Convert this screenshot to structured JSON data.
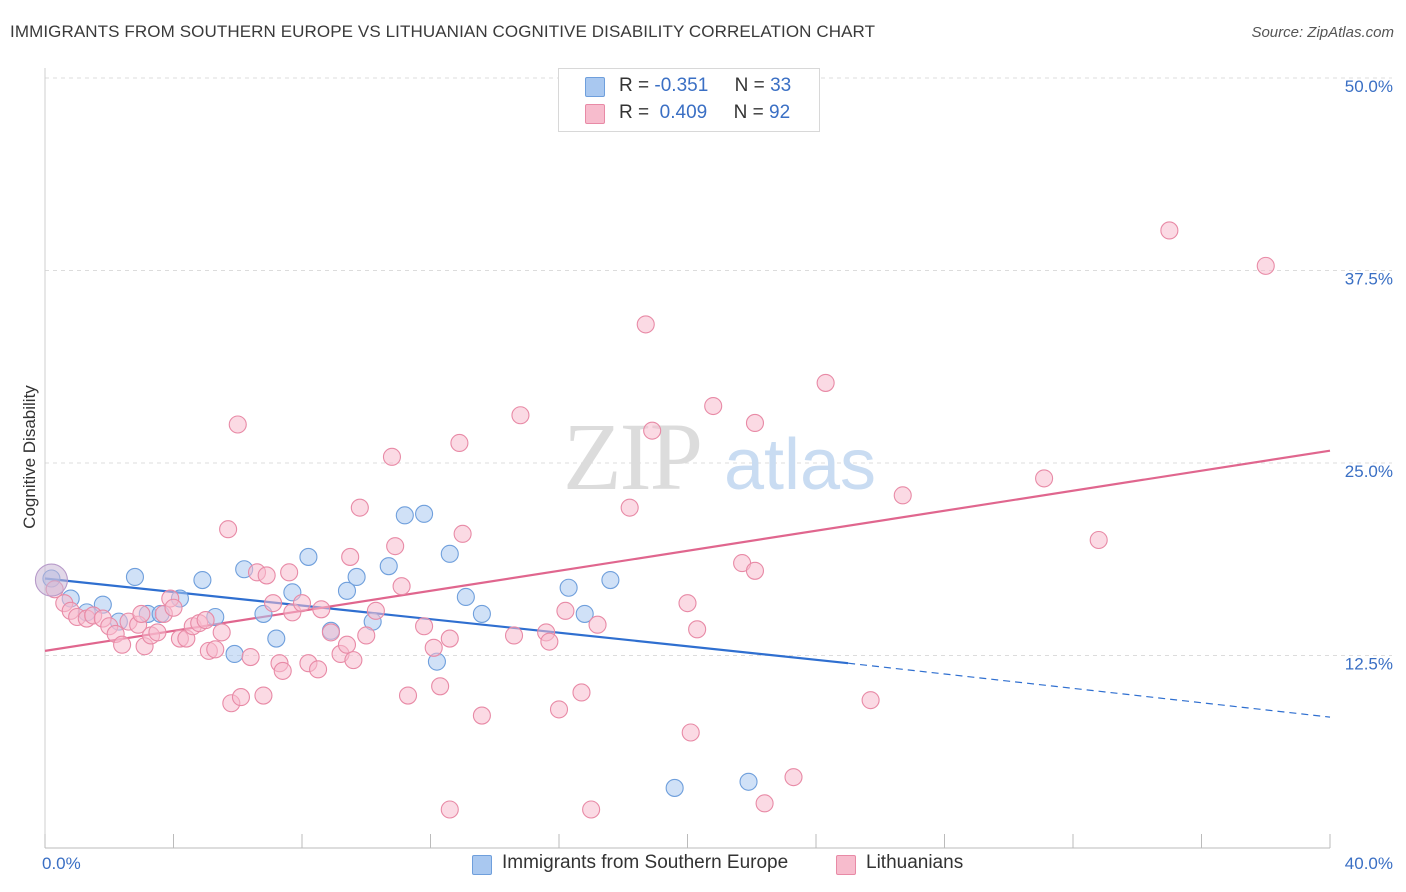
{
  "header": {
    "title": "IMMIGRANTS FROM SOUTHERN EUROPE VS LITHUANIAN COGNITIVE DISABILITY CORRELATION CHART",
    "source": "Source: ZipAtlas.com"
  },
  "watermark": {
    "zip": "ZIP",
    "atlas": "atlas"
  },
  "legend": {
    "r_label": "R =",
    "n_label": "N =",
    "rows": [
      {
        "r": "-0.351",
        "n": "33",
        "color": "#a9c8f0",
        "border": "#6f9fdc"
      },
      {
        "r": "0.409",
        "n": "92",
        "color": "#f7bccd",
        "border": "#e88aa6"
      }
    ]
  },
  "chart_data": {
    "type": "scatter",
    "xlabel": "",
    "ylabel": "Cognitive Disability",
    "xlim": [
      0,
      40
    ],
    "ylim": [
      0,
      50
    ],
    "x_tick_labels": [
      "0.0%",
      "40.0%"
    ],
    "y_ticks": [
      12.5,
      25.0,
      37.5,
      50.0
    ],
    "y_tick_labels": [
      "12.5%",
      "25.0%",
      "37.5%",
      "50.0%"
    ],
    "grid": true,
    "legend_position": "bottom",
    "series": [
      {
        "name": "Immigrants from Southern Europe",
        "color": "#6f9fdc",
        "fill": "#a9c8f0",
        "trend_color": "#2f6fd0",
        "trend": {
          "x0": 0,
          "y0": 17.5,
          "x1": 25,
          "y1": 12.0,
          "dash_x1": 40,
          "dash_y1": 8.5
        },
        "points": [
          [
            0.2,
            17.5
          ],
          [
            0.8,
            16.2
          ],
          [
            1.3,
            15.3
          ],
          [
            1.8,
            15.8
          ],
          [
            2.3,
            14.7
          ],
          [
            2.8,
            17.6
          ],
          [
            3.2,
            15.2
          ],
          [
            3.6,
            15.2
          ],
          [
            4.2,
            16.2
          ],
          [
            4.9,
            17.4
          ],
          [
            5.3,
            15.0
          ],
          [
            5.9,
            12.6
          ],
          [
            6.2,
            18.1
          ],
          [
            6.8,
            15.2
          ],
          [
            7.2,
            13.6
          ],
          [
            7.7,
            16.6
          ],
          [
            8.2,
            18.9
          ],
          [
            8.9,
            14.1
          ],
          [
            9.4,
            16.7
          ],
          [
            9.7,
            17.6
          ],
          [
            10.2,
            14.7
          ],
          [
            10.7,
            18.3
          ],
          [
            11.2,
            21.6
          ],
          [
            11.8,
            21.7
          ],
          [
            12.2,
            12.1
          ],
          [
            12.6,
            19.1
          ],
          [
            13.1,
            16.3
          ],
          [
            13.6,
            15.2
          ],
          [
            16.3,
            16.9
          ],
          [
            16.8,
            15.2
          ],
          [
            17.6,
            17.4
          ],
          [
            19.6,
            3.9
          ],
          [
            21.9,
            4.3
          ]
        ]
      },
      {
        "name": "Lithuanians",
        "color": "#e88aa6",
        "fill": "#f7bccd",
        "trend_color": "#e0668e",
        "trend": {
          "x0": 0,
          "y0": 12.8,
          "x1": 40,
          "y1": 25.8
        },
        "points": [
          [
            0.3,
            16.8
          ],
          [
            0.6,
            15.9
          ],
          [
            0.8,
            15.4
          ],
          [
            1.0,
            15.0
          ],
          [
            1.3,
            14.9
          ],
          [
            1.5,
            15.1
          ],
          [
            1.8,
            14.9
          ],
          [
            2.0,
            14.4
          ],
          [
            2.2,
            13.9
          ],
          [
            2.4,
            13.2
          ],
          [
            2.6,
            14.7
          ],
          [
            2.9,
            14.5
          ],
          [
            3.0,
            15.2
          ],
          [
            3.1,
            13.1
          ],
          [
            3.3,
            13.8
          ],
          [
            3.5,
            14.0
          ],
          [
            3.7,
            15.2
          ],
          [
            3.9,
            16.2
          ],
          [
            4.0,
            15.6
          ],
          [
            4.2,
            13.6
          ],
          [
            4.4,
            13.6
          ],
          [
            4.6,
            14.4
          ],
          [
            4.8,
            14.6
          ],
          [
            5.0,
            14.8
          ],
          [
            5.1,
            12.8
          ],
          [
            5.3,
            12.9
          ],
          [
            5.5,
            14.0
          ],
          [
            5.7,
            20.7
          ],
          [
            5.8,
            9.4
          ],
          [
            6.0,
            27.5
          ],
          [
            6.1,
            9.8
          ],
          [
            6.4,
            12.4
          ],
          [
            6.6,
            17.9
          ],
          [
            6.8,
            9.9
          ],
          [
            6.9,
            17.7
          ],
          [
            7.1,
            15.9
          ],
          [
            7.3,
            12.0
          ],
          [
            7.4,
            11.5
          ],
          [
            7.6,
            17.9
          ],
          [
            7.7,
            15.3
          ],
          [
            8.0,
            15.9
          ],
          [
            8.2,
            12.0
          ],
          [
            8.5,
            11.6
          ],
          [
            8.6,
            15.5
          ],
          [
            8.9,
            14.0
          ],
          [
            9.2,
            12.6
          ],
          [
            9.4,
            13.2
          ],
          [
            9.5,
            18.9
          ],
          [
            9.6,
            12.2
          ],
          [
            9.8,
            22.1
          ],
          [
            10.0,
            13.8
          ],
          [
            10.3,
            15.4
          ],
          [
            10.8,
            25.4
          ],
          [
            10.9,
            19.6
          ],
          [
            11.1,
            17.0
          ],
          [
            11.3,
            9.9
          ],
          [
            11.8,
            14.4
          ],
          [
            12.1,
            13.0
          ],
          [
            12.3,
            10.5
          ],
          [
            12.6,
            13.6
          ],
          [
            12.9,
            26.3
          ],
          [
            13.0,
            20.4
          ],
          [
            13.6,
            8.6
          ],
          [
            14.6,
            13.8
          ],
          [
            14.8,
            28.1
          ],
          [
            15.6,
            14.0
          ],
          [
            15.7,
            13.4
          ],
          [
            16.0,
            9.0
          ],
          [
            16.2,
            15.4
          ],
          [
            16.7,
            10.1
          ],
          [
            17.0,
            2.5
          ],
          [
            17.2,
            14.5
          ],
          [
            18.2,
            22.1
          ],
          [
            18.7,
            34.0
          ],
          [
            18.9,
            27.1
          ],
          [
            20.0,
            15.9
          ],
          [
            20.1,
            7.5
          ],
          [
            20.8,
            28.7
          ],
          [
            21.7,
            18.5
          ],
          [
            22.1,
            18.0
          ],
          [
            22.1,
            27.6
          ],
          [
            22.4,
            2.9
          ],
          [
            23.3,
            4.6
          ],
          [
            24.3,
            30.2
          ],
          [
            25.7,
            9.6
          ],
          [
            26.7,
            22.9
          ],
          [
            31.1,
            24.0
          ],
          [
            32.8,
            20.0
          ],
          [
            35.0,
            40.1
          ],
          [
            38.0,
            37.8
          ],
          [
            20.3,
            14.2
          ],
          [
            12.6,
            2.5
          ]
        ]
      }
    ]
  }
}
